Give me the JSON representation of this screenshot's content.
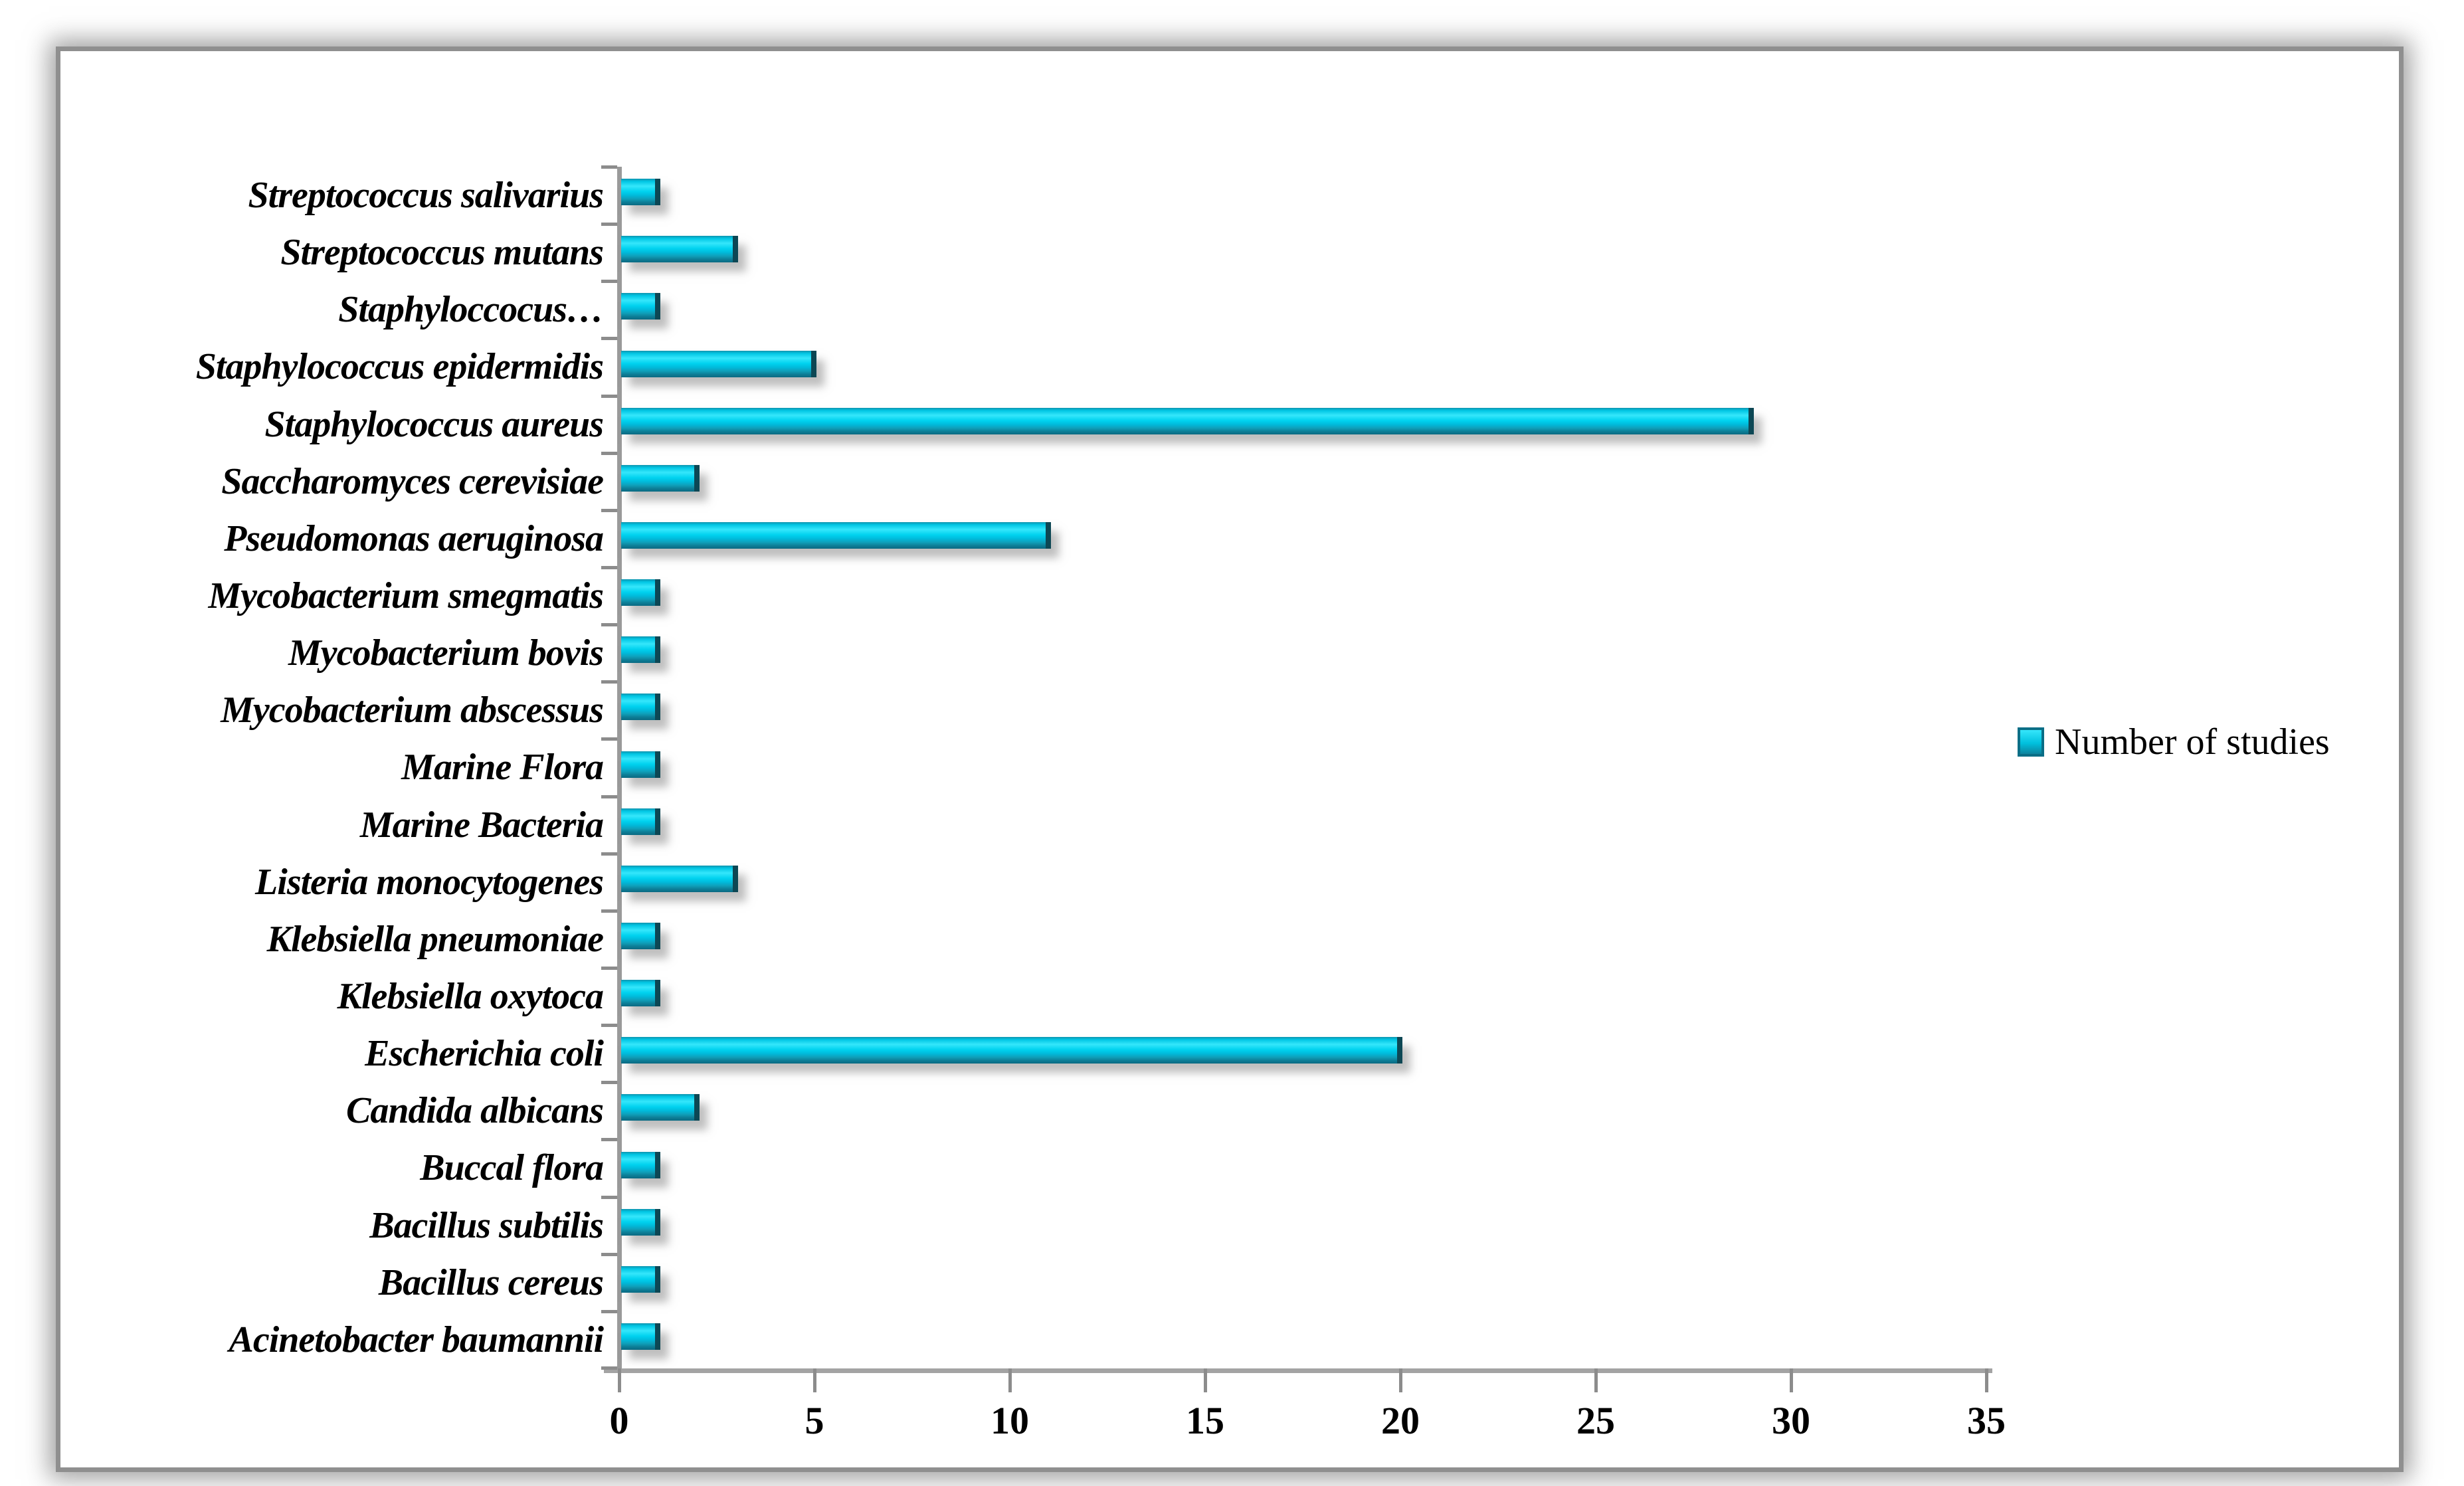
{
  "page": {
    "background": "#ffffff"
  },
  "legend": {
    "label": "Number of studies",
    "position": "right"
  },
  "colors": {
    "bar_bright": "#35e6fb",
    "bar_main": "#00c6e4",
    "bar_dark": "#0a6a82",
    "bar_end_cap": "#0d4754",
    "axis_line": "#9a9a9a",
    "tick_mark": "#8c8c8c",
    "frame_border": "#8f8f8f",
    "text": "#000000"
  },
  "chart_data": {
    "type": "bar",
    "orientation": "horizontal",
    "title": "",
    "xlabel": "",
    "ylabel": "",
    "xlim": [
      0,
      35
    ],
    "x_tick_step": 5,
    "x_ticks": [
      "0",
      "5",
      "10",
      "15",
      "20",
      "25",
      "30",
      "35"
    ],
    "grid": false,
    "legend_position": "right-middle",
    "series_name": "Number of studies",
    "categories": [
      "Streptococcus salivarius",
      "Streptococcus mutans",
      "Staphyloccocus…",
      "Staphylococcus epidermidis",
      "Staphylococcus aureus",
      "Saccharomyces cerevisiae",
      "Pseudomonas aeruginosa",
      "Mycobacterium smegmatis",
      "Mycobacterium bovis",
      "Mycobacterium abscessus",
      "Marine Flora",
      "Marine Bacteria",
      "Listeria monocytogenes",
      "Klebsiella pneumoniae",
      "Klebsiella oxytoca",
      "Escherichia coli",
      "Candida albicans",
      "Buccal flora",
      "Bacillus subtilis",
      "Bacillus cereus",
      "Acinetobacter baumannii"
    ],
    "values": [
      1,
      3,
      1,
      5,
      29,
      2,
      11,
      1,
      1,
      1,
      1,
      1,
      3,
      1,
      1,
      20,
      2,
      1,
      1,
      1,
      1
    ]
  }
}
